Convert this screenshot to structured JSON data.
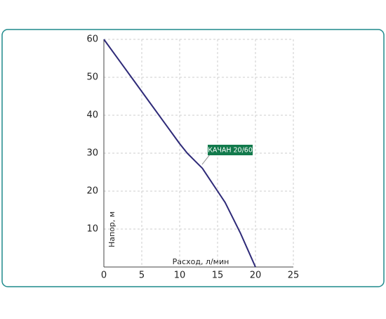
{
  "chart_data": {
    "type": "line",
    "xlabel": "Расход, л/мин",
    "ylabel": "Напор, м",
    "xlim": [
      0,
      25
    ],
    "xticks": [
      0,
      5,
      10,
      15,
      20,
      25
    ],
    "ylim": [
      0,
      60
    ],
    "yticks": [
      10,
      20,
      30,
      40,
      50,
      60
    ],
    "grid": true,
    "series": [
      {
        "name": "КАЧАН 20/60",
        "color": "#2e2a78",
        "x": [
          0,
          2,
          4,
          6,
          8,
          10,
          11,
          12,
          13,
          14,
          15,
          16,
          17,
          18,
          19,
          20
        ],
        "values": [
          60,
          54.5,
          49,
          43.5,
          38,
          32.5,
          30,
          28,
          26,
          23,
          20,
          17,
          13,
          9,
          4.5,
          0
        ]
      }
    ]
  }
}
